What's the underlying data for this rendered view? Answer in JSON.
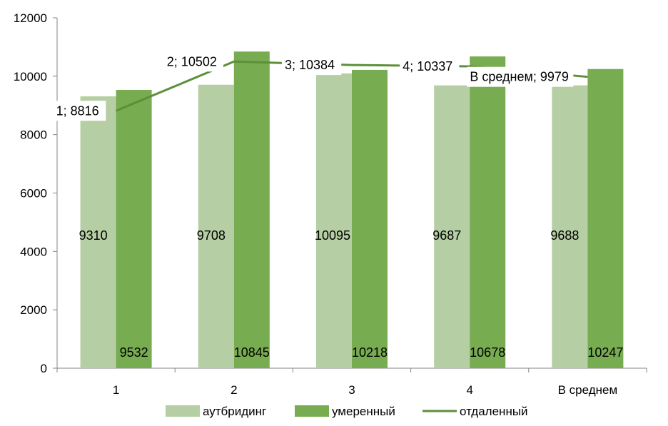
{
  "chart_data": {
    "type": "bar",
    "categories": [
      "1",
      "2",
      "3",
      "4",
      "В среднем"
    ],
    "ylim": [
      0,
      12000
    ],
    "yticks": [
      0,
      2000,
      4000,
      6000,
      8000,
      10000,
      12000
    ],
    "grid": false,
    "legend_position": "bottom",
    "series": [
      {
        "name": "аутбридинг",
        "kind": "bar",
        "color": "#b5cea3",
        "values": [
          9310,
          9708,
          10095,
          9687,
          9688
        ]
      },
      {
        "name": "умеренный",
        "kind": "bar",
        "color": "#77ac51",
        "values": [
          9532,
          10845,
          10218,
          10678,
          10247
        ]
      },
      {
        "name": "отдаленный",
        "kind": "line",
        "color": "#5d8f3a",
        "values": [
          8816,
          10502,
          10384,
          10337,
          9979
        ]
      }
    ],
    "line_labels": [
      "1; 8816",
      "2; 10502",
      "3; 10384",
      "4; 10337",
      "В среднем; 9979"
    ]
  }
}
